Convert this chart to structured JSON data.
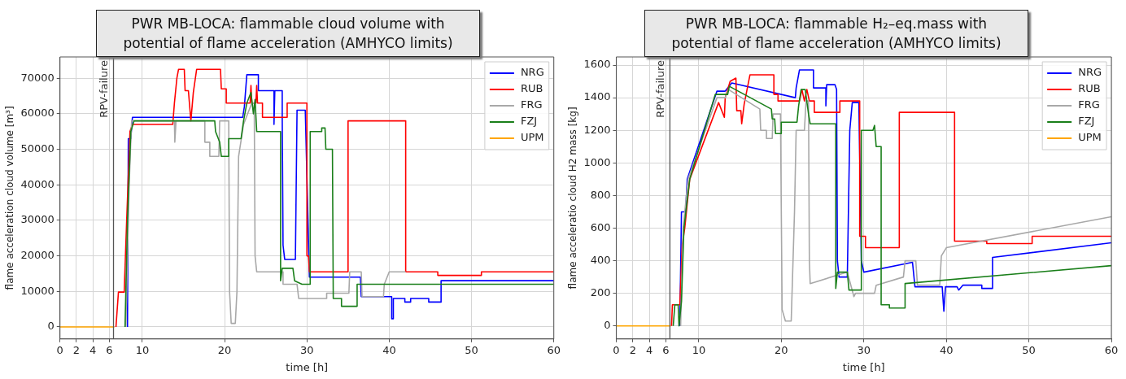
{
  "chart_data": [
    {
      "type": "line",
      "title": "PWR MB-LOCA: flammable cloud volume with potential of flame acceleration (AMHYCO limits)",
      "xlabel": "time [h]",
      "ylabel": "flame acceleration cloud volume [m³]",
      "xlim": [
        0,
        60
      ],
      "xticks": [
        0,
        2,
        4,
        6,
        10,
        20,
        30,
        40,
        50,
        60
      ],
      "ylim": [
        -3400,
        76000
      ],
      "yticks": [
        0,
        10000,
        20000,
        30000,
        40000,
        50000,
        60000,
        70000
      ],
      "grid": true,
      "legend": "top right",
      "marker": "none",
      "ref_lines": [
        {
          "axis": "x",
          "value": 6.5,
          "label": "RPV-failure",
          "color": "#555555"
        }
      ],
      "series": [
        {
          "name": "NRG",
          "color": "#0000ff",
          "x": [
            8.2,
            8.3,
            8.6,
            8.8,
            22.2,
            22.4,
            22.7,
            24.1,
            24.1,
            26,
            26,
            26.1,
            27,
            27,
            27.1,
            27.3,
            28.6,
            28.8,
            29.8,
            30.3,
            36.5,
            36.6,
            40.3,
            40.3,
            40.5,
            40.5,
            41.9,
            41.9,
            42.6,
            42.6,
            44.8,
            44.8,
            46.3,
            46.3,
            60
          ],
          "values": [
            0,
            53000,
            53000,
            59000,
            59000,
            62000,
            71000,
            71000,
            66500,
            66500,
            57000,
            66500,
            66500,
            59000,
            23000,
            19000,
            19000,
            61000,
            61000,
            14000,
            14000,
            8500,
            8500,
            2300,
            2300,
            8000,
            8000,
            7000,
            7000,
            8000,
            8000,
            7000,
            7000,
            13000,
            13000
          ]
        },
        {
          "name": "RUB",
          "color": "#ff0000",
          "x": [
            6.8,
            7.1,
            7.8,
            8.1,
            8.5,
            8.8,
            13.7,
            13.9,
            14.2,
            14.4,
            15.1,
            15.2,
            15.6,
            15.9,
            16.2,
            16.6,
            19.5,
            19.6,
            20.2,
            20.2,
            23.1,
            23.2,
            23.3,
            23.8,
            23.9,
            24,
            24.6,
            24.6,
            27.6,
            27.6,
            30,
            30,
            30.2,
            30.3,
            35,
            35,
            42,
            42,
            45.9,
            45.9,
            51.2,
            51.2,
            60
          ],
          "values": [
            0,
            9800,
            9800,
            30000,
            55000,
            57000,
            57000,
            63000,
            70000,
            72500,
            72500,
            66500,
            66500,
            58000,
            66000,
            72500,
            72500,
            67000,
            67000,
            63000,
            63000,
            68000,
            63000,
            63000,
            68000,
            63000,
            63000,
            59000,
            59000,
            63000,
            63000,
            20000,
            20000,
            15500,
            15500,
            58000,
            58000,
            15500,
            15500,
            14500,
            14500,
            15500,
            15500
          ]
        },
        {
          "name": "FRG",
          "color": "#a8a8a8",
          "x": [
            8,
            8.4,
            8.7,
            13.9,
            13.95,
            14.1,
            17.6,
            17.6,
            18.2,
            18.2,
            19.3,
            19.4,
            20.5,
            20.6,
            20.8,
            21.3,
            21.5,
            21.7,
            22.3,
            23.3,
            23.6,
            23.7,
            23.9,
            27.1,
            27.1,
            28.8,
            29,
            32.4,
            32.4,
            35.1,
            35.2,
            36.6,
            36.7,
            39.3,
            39.4,
            40,
            42
          ],
          "values": [
            0,
            40000,
            58000,
            58000,
            52000,
            58000,
            58000,
            52000,
            52000,
            48000,
            48000,
            58000,
            58000,
            10000,
            1000,
            1000,
            10000,
            48000,
            57000,
            63000,
            63000,
            20000,
            15500,
            15500,
            12000,
            12000,
            8000,
            8000,
            9500,
            9500,
            15500,
            15500,
            8500,
            8500,
            12000,
            15500,
            15500
          ]
        },
        {
          "name": "FZJ",
          "color": "#1a7f1a",
          "x": [
            7.9,
            8.2,
            8.6,
            9,
            18.8,
            18.9,
            19.4,
            19.6,
            20.5,
            20.5,
            22,
            22.3,
            22.7,
            23.2,
            23.5,
            23.7,
            23.9,
            26.8,
            26.8,
            27,
            28.3,
            28.5,
            29.4,
            30.4,
            30.4,
            31.8,
            31.8,
            32.2,
            32.3,
            33.1,
            33.2,
            34.2,
            34.2,
            36.1,
            36.1,
            60
          ],
          "values": [
            0,
            30000,
            55000,
            58000,
            58000,
            55000,
            52000,
            48000,
            48000,
            53000,
            53000,
            58000,
            63000,
            66000,
            60000,
            64000,
            55000,
            55000,
            13000,
            16500,
            16500,
            13000,
            12000,
            12000,
            55000,
            55000,
            56000,
            56000,
            50000,
            50000,
            8000,
            8000,
            5800,
            5800,
            12000,
            12000
          ]
        },
        {
          "name": "UPM",
          "color": "#ffa500",
          "x": [
            0,
            6.6
          ],
          "values": [
            0,
            0
          ]
        }
      ]
    },
    {
      "type": "line",
      "title": "PWR MB-LOCA: flammable H₂–eq.mass with potential of flame acceleration (AMHYCO limits)",
      "xlabel": "time [h]",
      "ylabel": "flame acceleratio cloud H2 mass [kg]",
      "xlim": [
        0,
        60
      ],
      "xticks": [
        0,
        2,
        4,
        6,
        10,
        20,
        30,
        40,
        50,
        60
      ],
      "ylim": [
        -80,
        1650
      ],
      "yticks": [
        0,
        200,
        400,
        600,
        800,
        1000,
        1200,
        1400,
        1600
      ],
      "grid": true,
      "legend": "top right",
      "marker": "none",
      "ref_lines": [
        {
          "axis": "x",
          "value": 6.5,
          "label": "RPV-failure",
          "color": "#555555"
        }
      ],
      "series": [
        {
          "name": "NRG",
          "color": "#0000ff",
          "x": [
            7.7,
            7.9,
            8.4,
            8.6,
            12.2,
            13.2,
            14,
            21.7,
            21.8,
            22.2,
            23.9,
            23.9,
            25.4,
            25.4,
            25.5,
            26.5,
            26.7,
            26.8,
            27,
            28,
            28.3,
            28.6,
            29.4,
            29.7,
            30,
            35.9,
            36.2,
            39.3,
            39.5,
            39.7,
            39.9,
            41.3,
            41.5,
            42,
            44.3,
            44.3,
            45.6,
            45.6,
            60
          ],
          "values": [
            0,
            700,
            700,
            900,
            1440,
            1440,
            1490,
            1400,
            1460,
            1570,
            1570,
            1460,
            1460,
            1350,
            1480,
            1480,
            1450,
            400,
            300,
            300,
            1200,
            1370,
            1370,
            400,
            330,
            390,
            240,
            240,
            240,
            90,
            240,
            240,
            220,
            250,
            250,
            230,
            230,
            420,
            510
          ]
        },
        {
          "name": "RUB",
          "color": "#ff0000",
          "x": [
            6.7,
            6.8,
            7.7,
            8,
            8.3,
            8.9,
            12.4,
            13.1,
            13.2,
            13.8,
            14.5,
            14.6,
            15.1,
            15.2,
            15.5,
            16.2,
            19.1,
            19.1,
            19.6,
            19.6,
            22.2,
            22.5,
            22.8,
            23.1,
            23.4,
            24,
            24,
            27.1,
            27.1,
            29.5,
            29.5,
            30.2,
            30.2,
            34.3,
            34.3,
            41,
            41,
            44.9,
            44.9,
            50.4,
            50.4,
            60
          ],
          "values": [
            0,
            130,
            130,
            500,
            600,
            900,
            1370,
            1280,
            1400,
            1500,
            1520,
            1320,
            1320,
            1240,
            1360,
            1540,
            1540,
            1420,
            1420,
            1380,
            1380,
            1450,
            1380,
            1450,
            1380,
            1380,
            1310,
            1310,
            1380,
            1380,
            550,
            550,
            480,
            480,
            1310,
            1310,
            520,
            520,
            505,
            505,
            550,
            550
          ]
        },
        {
          "name": "FRG",
          "color": "#a8a8a8",
          "x": [
            7.8,
            8.1,
            8.7,
            12.2,
            13.2,
            13.6,
            17.4,
            17.5,
            18.2,
            18.2,
            18.9,
            19,
            19.9,
            20.1,
            20.5,
            21.2,
            21.6,
            21.8,
            22.8,
            23,
            23.3,
            23.4,
            23.5,
            28,
            28.8,
            29,
            31.3,
            31.5,
            34.8,
            35,
            36.3,
            36.5,
            39.2,
            39.4,
            40,
            60
          ],
          "values": [
            0,
            600,
            900,
            1400,
            1400,
            1450,
            1330,
            1200,
            1200,
            1150,
            1150,
            1300,
            1300,
            100,
            30,
            30,
            700,
            1200,
            1200,
            1380,
            1380,
            400,
            260,
            330,
            180,
            200,
            200,
            250,
            300,
            400,
            400,
            250,
            250,
            430,
            480,
            670
          ]
        },
        {
          "name": "FZJ",
          "color": "#1a7f1a",
          "x": [
            6.9,
            7.1,
            7.5,
            7.6,
            7.9,
            8.2,
            8.9,
            12,
            13.5,
            13.7,
            18.8,
            18.9,
            19.2,
            19.3,
            20,
            20,
            21.9,
            22.1,
            22.4,
            22.9,
            23.3,
            23.5,
            26.6,
            26.6,
            26.8,
            28,
            28.2,
            29.7,
            29.7,
            31.1,
            31.3,
            31.5,
            32.1,
            32.1,
            33.1,
            33.1,
            35,
            35,
            60
          ],
          "values": [
            0,
            130,
            130,
            0,
            150,
            600,
            900,
            1420,
            1420,
            1470,
            1330,
            1270,
            1270,
            1180,
            1180,
            1250,
            1250,
            1350,
            1450,
            1450,
            1300,
            1240,
            1240,
            230,
            330,
            330,
            220,
            220,
            1200,
            1200,
            1230,
            1100,
            1100,
            130,
            130,
            110,
            110,
            260,
            370
          ]
        },
        {
          "name": "UPM",
          "color": "#ffa500",
          "x": [
            0,
            6.6
          ],
          "values": [
            0,
            0
          ]
        }
      ]
    }
  ]
}
